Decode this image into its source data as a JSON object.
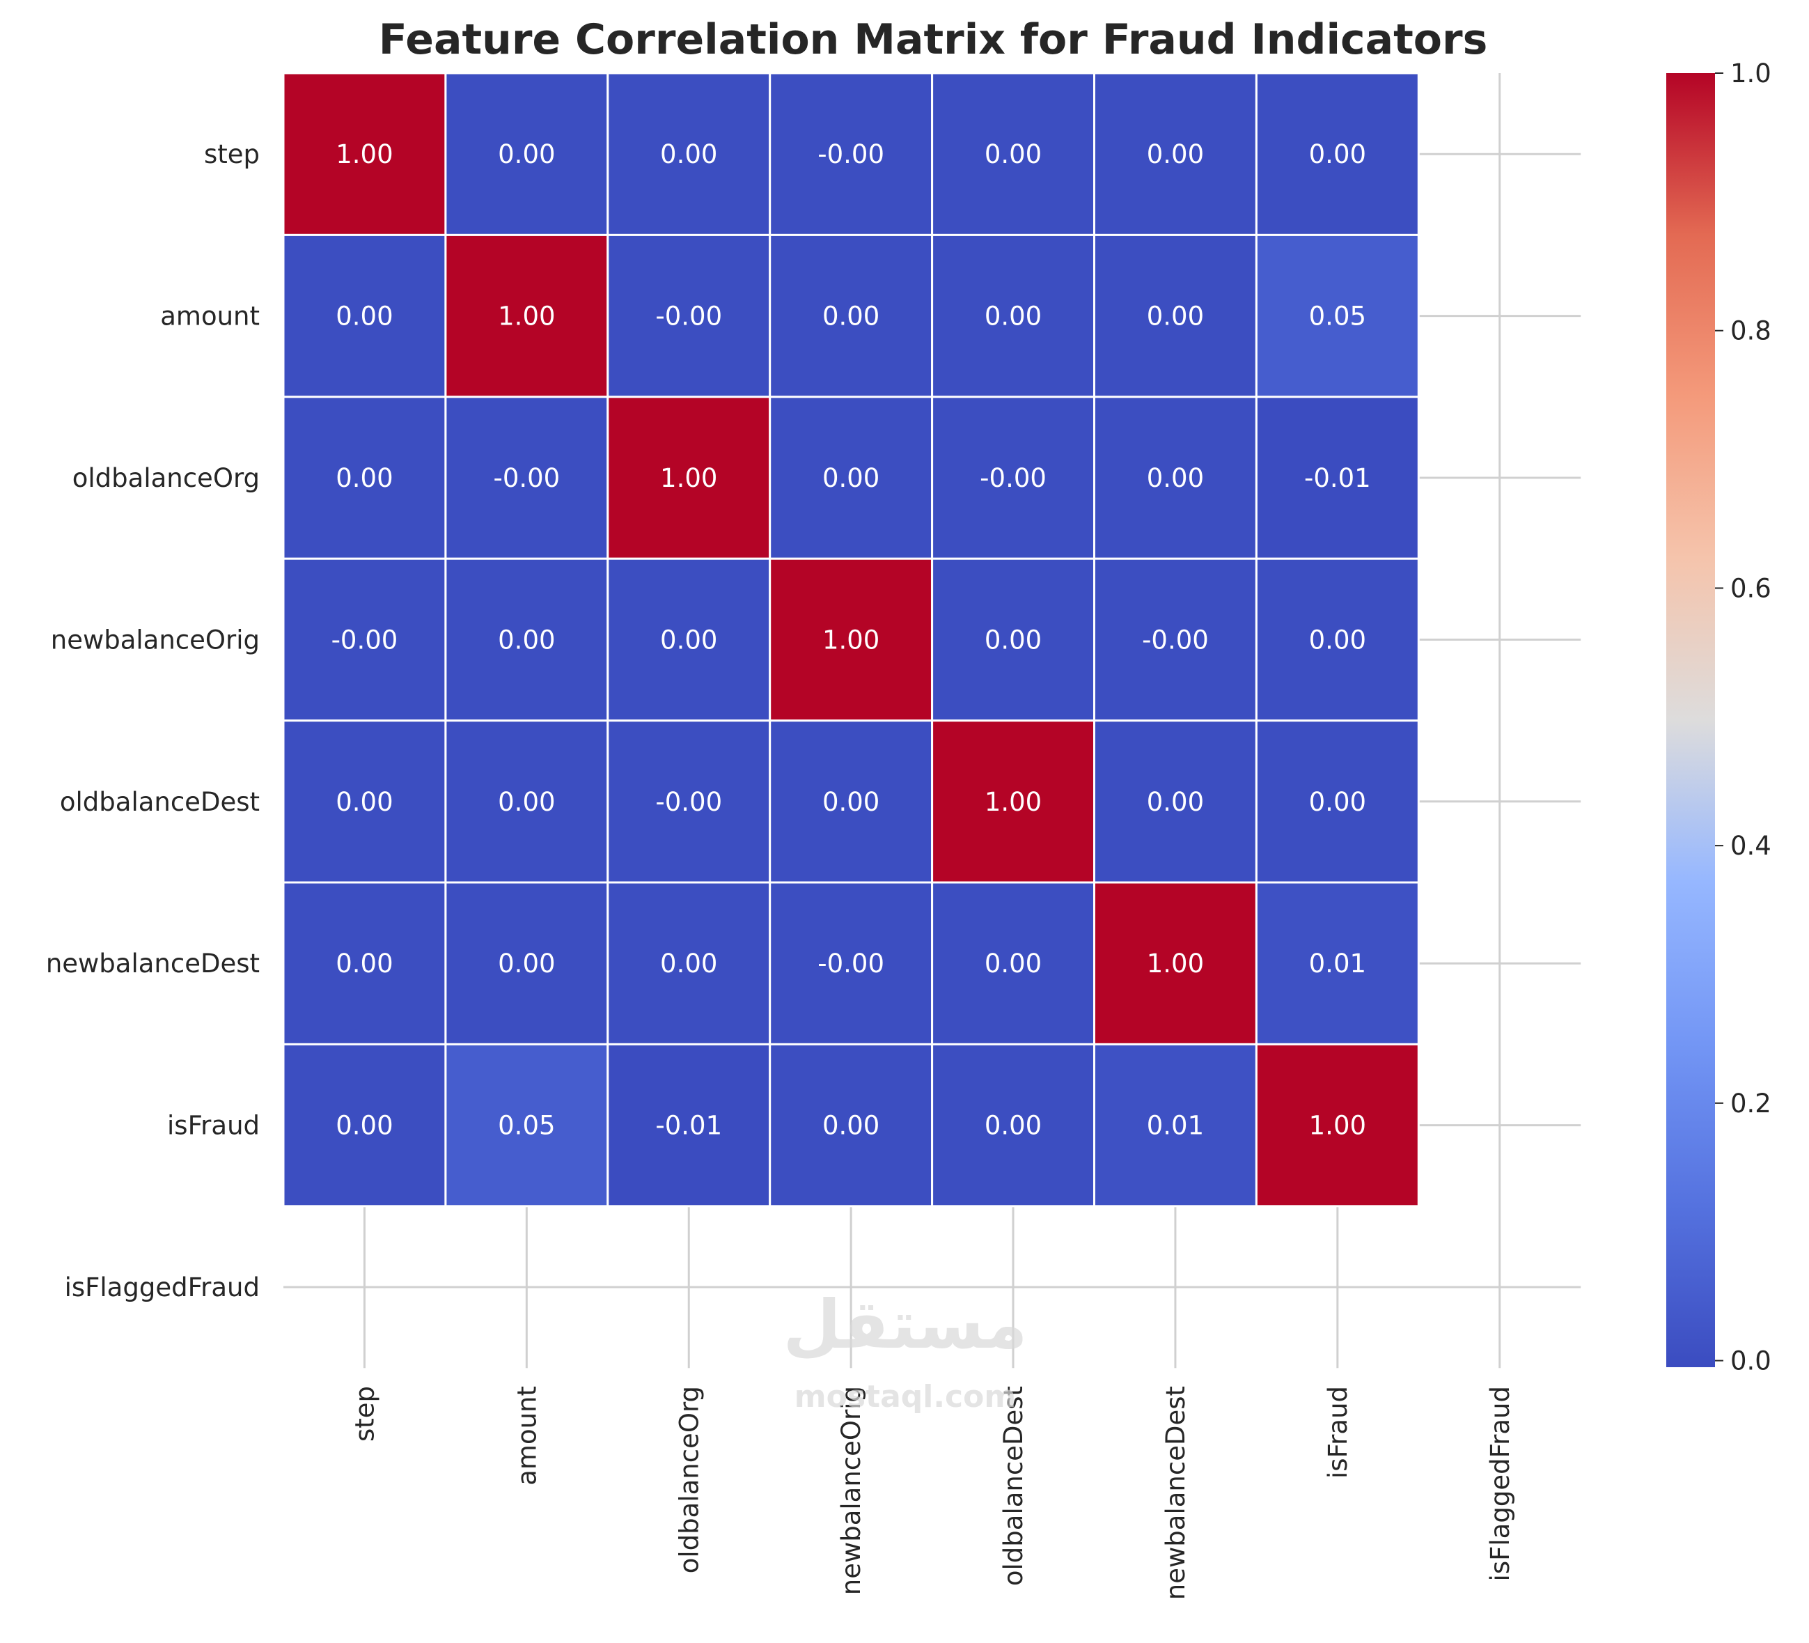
{
  "chart_data": {
    "type": "heatmap",
    "title": "Feature Correlation Matrix for Fraud Indicators",
    "rows": [
      "step",
      "amount",
      "oldbalanceOrg",
      "newbalanceOrig",
      "oldbalanceDest",
      "newbalanceDest",
      "isFraud",
      "isFlaggedFraud"
    ],
    "columns": [
      "step",
      "amount",
      "oldbalanceOrg",
      "newbalanceOrig",
      "oldbalanceDest",
      "newbalanceDest",
      "isFraud",
      "isFlaggedFraud"
    ],
    "values": [
      [
        1.0,
        0.0,
        0.0,
        -0.0,
        0.0,
        0.0,
        0.0,
        null
      ],
      [
        0.0,
        1.0,
        -0.0,
        0.0,
        0.0,
        0.0,
        0.05,
        null
      ],
      [
        0.0,
        -0.0,
        1.0,
        0.0,
        -0.0,
        0.0,
        -0.01,
        null
      ],
      [
        -0.0,
        0.0,
        0.0,
        1.0,
        0.0,
        -0.0,
        0.0,
        null
      ],
      [
        0.0,
        0.0,
        -0.0,
        0.0,
        1.0,
        0.0,
        0.0,
        null
      ],
      [
        0.0,
        0.0,
        0.0,
        -0.0,
        0.0,
        1.0,
        0.01,
        null
      ],
      [
        0.0,
        0.05,
        -0.01,
        0.0,
        0.0,
        0.01,
        1.0,
        null
      ],
      [
        null,
        null,
        null,
        null,
        null,
        null,
        null,
        null
      ]
    ],
    "annotations": [
      [
        "1.00",
        "0.00",
        "0.00",
        "-0.00",
        "0.00",
        "0.00",
        "0.00",
        ""
      ],
      [
        "0.00",
        "1.00",
        "-0.00",
        "0.00",
        "0.00",
        "0.00",
        "0.05",
        ""
      ],
      [
        "0.00",
        "-0.00",
        "1.00",
        "0.00",
        "-0.00",
        "0.00",
        "-0.01",
        ""
      ],
      [
        "-0.00",
        "0.00",
        "0.00",
        "1.00",
        "0.00",
        "-0.00",
        "0.00",
        ""
      ],
      [
        "0.00",
        "0.00",
        "-0.00",
        "0.00",
        "1.00",
        "0.00",
        "0.00",
        ""
      ],
      [
        "0.00",
        "0.00",
        "0.00",
        "-0.00",
        "0.00",
        "1.00",
        "0.01",
        ""
      ],
      [
        "0.00",
        "0.05",
        "-0.01",
        "0.00",
        "0.00",
        "0.01",
        "1.00",
        ""
      ],
      [
        "",
        "",
        "",
        "",
        "",
        "",
        "",
        ""
      ]
    ],
    "colormap": "coolwarm",
    "colorbar": {
      "range": [
        -0.0051,
        1.0
      ],
      "ticks": [
        0.0,
        0.2,
        0.4,
        0.6,
        0.8,
        1.0
      ],
      "tick_labels": [
        "0.0",
        "0.2",
        "0.4",
        "0.6",
        "0.8",
        "1.0"
      ]
    },
    "grid": true
  },
  "watermark": {
    "arabic": "مستقل",
    "latin": "mostaql.com"
  },
  "colors": {
    "grid": "#d0d0d0",
    "cell_border": "#ffffff",
    "text_dark": "#262626"
  }
}
